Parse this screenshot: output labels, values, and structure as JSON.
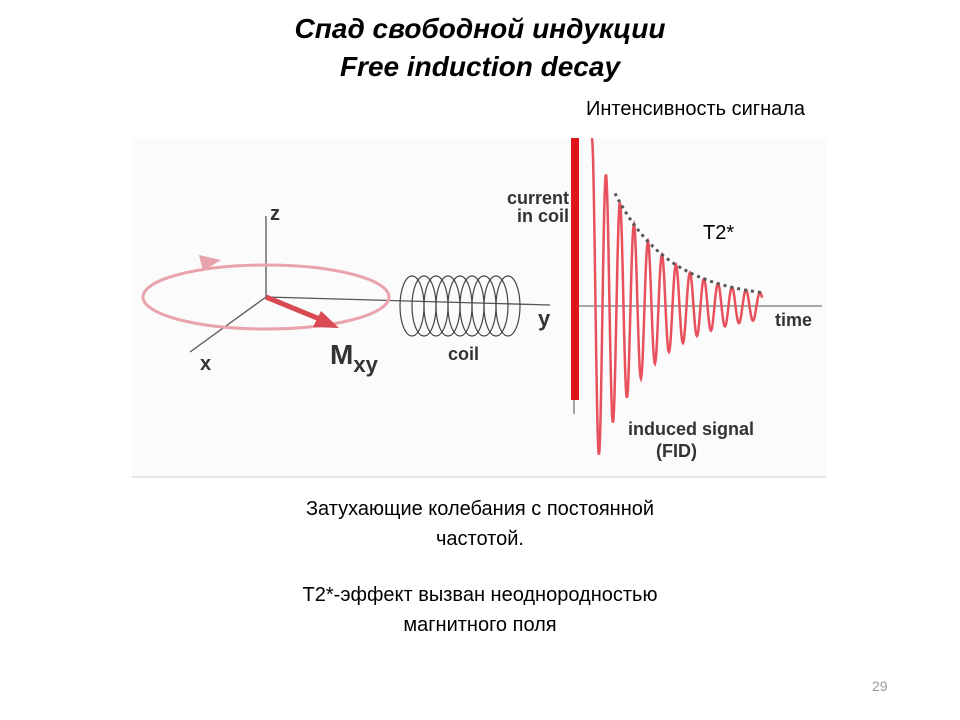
{
  "title": {
    "line1": "Спад свободной индукции",
    "line2": "Free induction decay"
  },
  "figure": {
    "axis_z": "z",
    "axis_x": "x",
    "axis_y": "y",
    "magnetization": "M",
    "magnetization_sub": "xy",
    "coil": "coil",
    "current_line1": "current",
    "current_line2": "in coil",
    "time": "time",
    "induced_line1": "induced signal",
    "induced_line2": "(FID)",
    "vector_color": "#d94a55",
    "signal_color": "#e8505c",
    "arrow_color": "#e0141c"
  },
  "annotations": {
    "intensity": "Интенсивность сигнала",
    "t2": "T2*"
  },
  "caption": {
    "line1": "Затухающие колебания с постоянной",
    "line2": "частотой.",
    "line3": "T2*-эффект вызван неоднородностью",
    "line4": "магнитного поля"
  },
  "page_number": "29"
}
